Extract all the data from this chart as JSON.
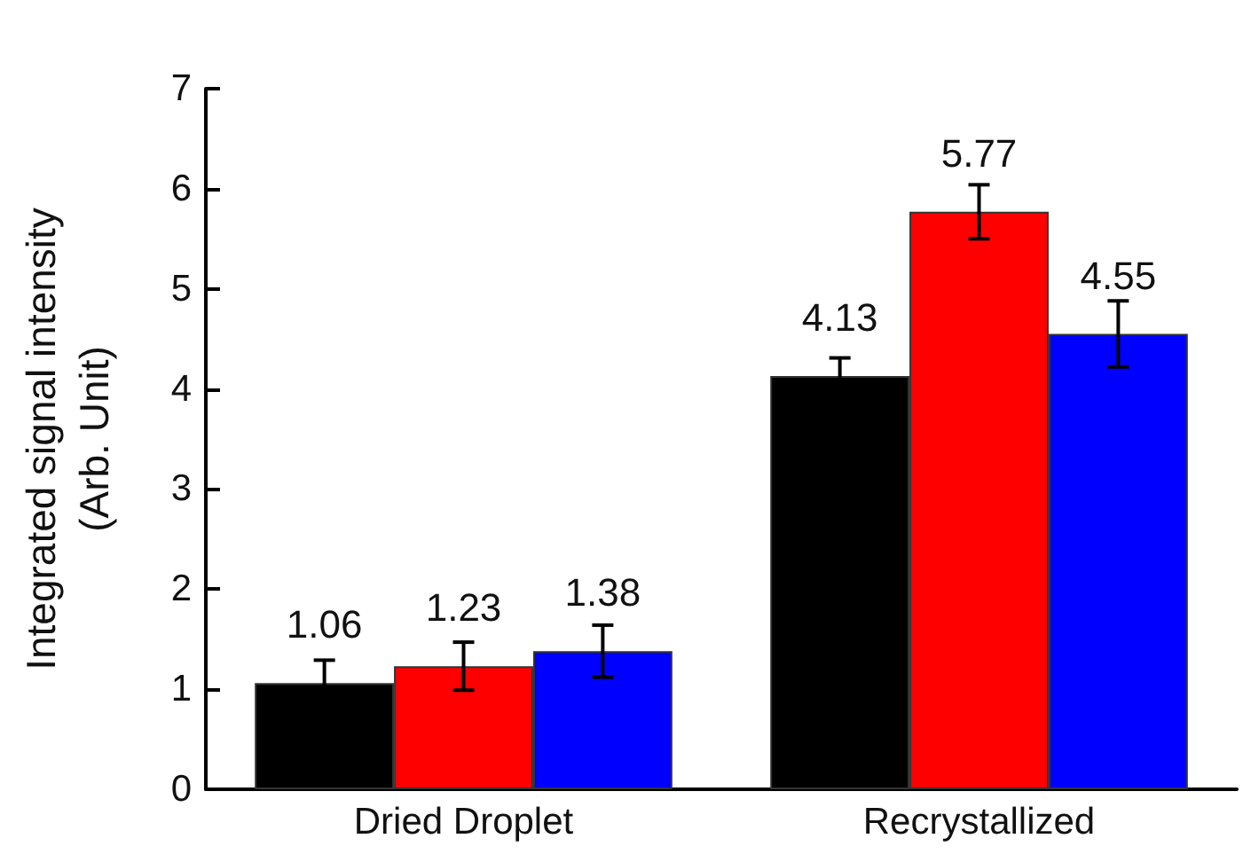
{
  "chart_data": {
    "type": "bar",
    "ylabel": "Integrated signal intensity\n(Arb. Unit)",
    "categories": [
      "Dried Droplet",
      "Recrystallized"
    ],
    "series": [
      {
        "color": "#000000",
        "values": [
          1.06,
          4.13
        ],
        "errors": [
          0.23,
          0.18
        ]
      },
      {
        "color": "#ff0000",
        "values": [
          1.23,
          5.77
        ],
        "errors": [
          0.24,
          0.27
        ]
      },
      {
        "color": "#0000ff",
        "values": [
          1.38,
          4.55
        ],
        "errors": [
          0.26,
          0.33
        ]
      }
    ],
    "ylim": [
      0,
      7
    ],
    "yticks": [
      0,
      1,
      2,
      3,
      4,
      5,
      6,
      7
    ],
    "data_labels": true,
    "grid": false
  }
}
